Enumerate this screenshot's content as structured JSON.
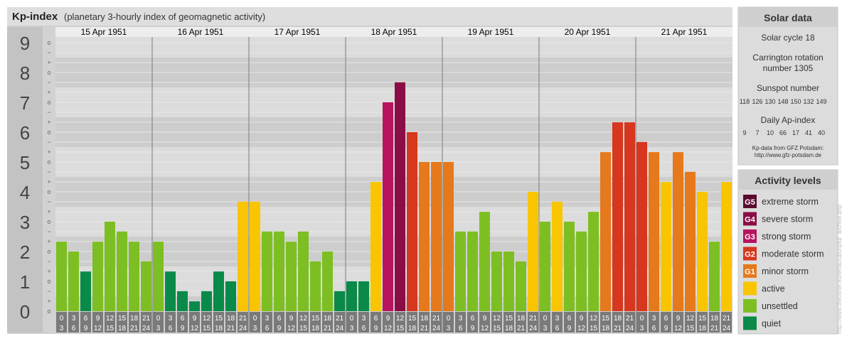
{
  "title": "Kp-index",
  "subtitle": "(planetary 3-hourly index of geomagnetic activity)",
  "chart_data": {
    "type": "bar",
    "ylim": [
      0,
      9
    ],
    "y_ticks": [
      "0",
      "1",
      "2",
      "3",
      "4",
      "5",
      "6",
      "7",
      "8",
      "9"
    ],
    "y_minor_ticks": [
      "o",
      "+",
      "−",
      "o",
      "+",
      "−",
      "o",
      "+",
      "−",
      "o",
      "+",
      "−",
      "o",
      "+",
      "−",
      "o",
      "+",
      "−",
      "o",
      "+",
      "−",
      "o",
      "+",
      "−",
      "o",
      "+",
      "−",
      "o"
    ],
    "days": [
      "15 Apr 1951",
      "16 Apr 1951",
      "17 Apr 1951",
      "18 Apr 1951",
      "19 Apr 1951",
      "20 Apr 1951",
      "21 Apr 1951"
    ],
    "hour_start": [
      "0",
      "3",
      "6",
      "9",
      "12",
      "15",
      "18",
      "21"
    ],
    "hour_end": [
      "3",
      "6",
      "9",
      "12",
      "15",
      "18",
      "21",
      "24"
    ],
    "values": [
      [
        2.33,
        2.0,
        1.33,
        2.33,
        3.0,
        2.67,
        2.33,
        1.67
      ],
      [
        2.33,
        1.33,
        0.67,
        0.33,
        0.67,
        1.33,
        1.0,
        3.67
      ],
      [
        3.67,
        2.67,
        2.67,
        2.33,
        2.67,
        1.67,
        2.0,
        0.67
      ],
      [
        1.0,
        1.0,
        4.33,
        7.0,
        7.67,
        6.0,
        5.0,
        5.0
      ],
      [
        5.0,
        2.67,
        2.67,
        3.33,
        2.0,
        2.0,
        1.67,
        4.0
      ],
      [
        3.0,
        3.67,
        3.0,
        2.67,
        3.33,
        5.33,
        6.33,
        6.33
      ],
      [
        5.67,
        5.33,
        4.33,
        5.33,
        4.67,
        4.0,
        2.33,
        4.33
      ]
    ],
    "grid": true,
    "legend": "right"
  },
  "solar": {
    "header": "Solar data",
    "cycle": "Solar cycle 18",
    "carrington_1": "Carrington rotation",
    "carrington_2": "number 1305",
    "sunspot_label": "Sunspot number",
    "sunspot_values": [
      "118",
      "126",
      "130",
      "148",
      "150",
      "132",
      "149"
    ],
    "ap_label": "Daily Ap-index",
    "ap_values": [
      "9",
      "7",
      "10",
      "66",
      "17",
      "41",
      "40"
    ],
    "source_1": "Kp-data from GFZ Potsdam:",
    "source_2": "http://www.gfz-potsdam.de"
  },
  "activity": {
    "header": "Activity levels",
    "items": [
      {
        "badge": "G5",
        "label": "extreme storm",
        "color": "#5b0a2f"
      },
      {
        "badge": "G4",
        "label": "severe storm",
        "color": "#8a0d45"
      },
      {
        "badge": "G3",
        "label": "strong storm",
        "color": "#b7135f"
      },
      {
        "badge": "G2",
        "label": "moderate storm",
        "color": "#d7361f"
      },
      {
        "badge": "G1",
        "label": "minor storm",
        "color": "#e5791b"
      },
      {
        "badge": "",
        "label": "active",
        "color": "#f8c500"
      },
      {
        "badge": "",
        "label": "unsettled",
        "color": "#7dbf22"
      },
      {
        "badge": "",
        "label": "quiet",
        "color": "#0a8a48"
      }
    ]
  },
  "source_credit": "http://www.theusner.eu/lenau/uburg/kp_archive.php",
  "colors": {
    "frame": "#c9c9c9",
    "band_dark": "#cdcdcd",
    "band_light": "#dcdcdc",
    "hour_box": "#7a7a7a"
  }
}
